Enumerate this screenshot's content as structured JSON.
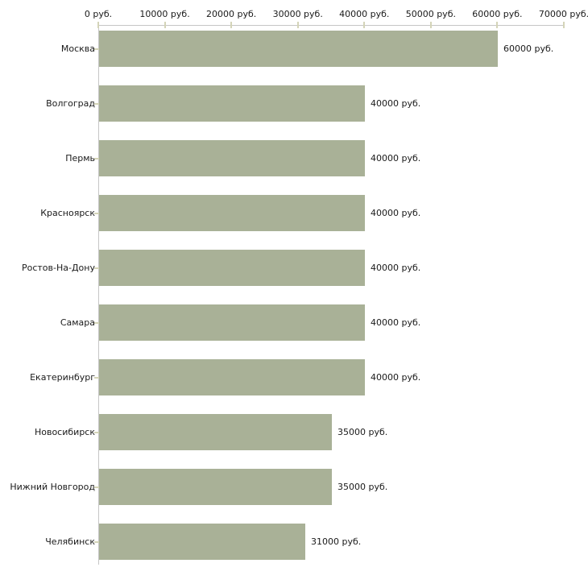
{
  "chart_data": {
    "type": "bar",
    "orientation": "horizontal",
    "title": "",
    "xlabel": "",
    "ylabel": "",
    "categories": [
      "Москва",
      "Волгоград",
      "Пермь",
      "Красноярск",
      "Ростов-На-Дону",
      "Самара",
      "Екатеринбург",
      "Новосибирск",
      "Нижний Новгород",
      "Челябинск"
    ],
    "values": [
      60000,
      40000,
      40000,
      40000,
      40000,
      40000,
      40000,
      35000,
      35000,
      31000
    ],
    "bar_value_labels": [
      "60000 руб.",
      "40000 руб.",
      "40000 руб.",
      "40000 руб.",
      "40000 руб.",
      "40000 руб.",
      "40000 руб.",
      "35000 руб.",
      "35000 руб.",
      "31000 руб."
    ],
    "x_axis": {
      "position": "top",
      "range": [
        0,
        70000
      ],
      "tick_values": [
        0,
        10000,
        20000,
        30000,
        40000,
        50000,
        60000,
        70000
      ],
      "tick_labels": [
        "0 руб.",
        "10000 руб.",
        "20000 руб.",
        "30000 руб.",
        "40000 руб.",
        "50000 руб.",
        "60000 руб.",
        "70000 руб."
      ]
    },
    "legend": null,
    "grid": false,
    "colors": {
      "bar": "#a9b197",
      "axis_line": "#c6c6c6",
      "tick_mark": "#d4d4b8",
      "text": "#1a1a1a",
      "background": "#ffffff"
    }
  }
}
